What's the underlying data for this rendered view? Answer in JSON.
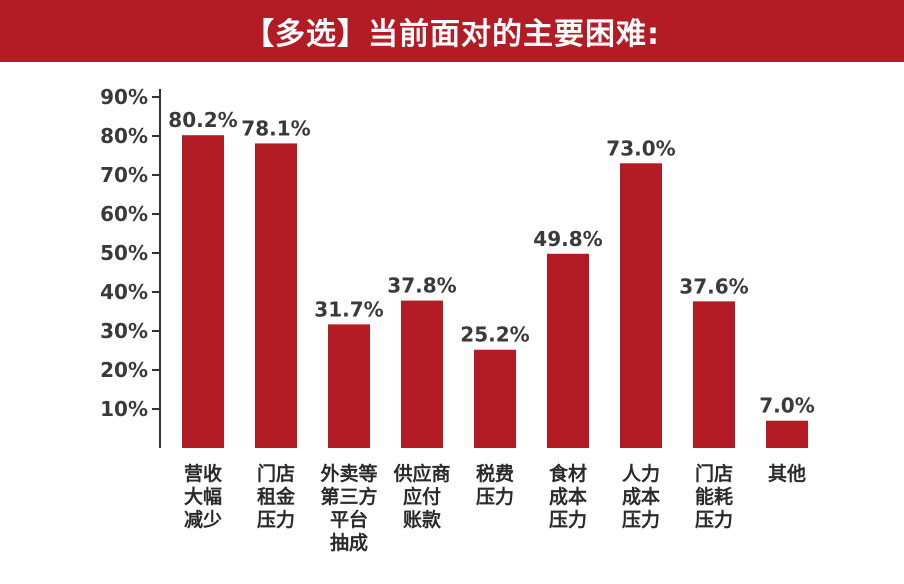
{
  "header": {
    "title": "【多选】当前面对的主要困难:"
  },
  "colors": {
    "bar": "#b31b25",
    "axis": "#333333",
    "text": "#3a3a3a",
    "title_bg": "#b31b25"
  },
  "chart_data": {
    "type": "bar",
    "title": "【多选】当前面对的主要困难:",
    "categories": [
      "营收大幅减少",
      "门店租金压力",
      "外卖等第三方平台抽成",
      "供应商应付账款",
      "税费压力",
      "食材成本压力",
      "人力成本压力",
      "门店能耗压力",
      "其他"
    ],
    "category_lines": [
      [
        "营收",
        "大幅",
        "减少"
      ],
      [
        "门店",
        "租金",
        "压力"
      ],
      [
        "外卖等",
        "第三方",
        "平台",
        "抽成"
      ],
      [
        "供应商",
        "应付",
        "账款"
      ],
      [
        "税费",
        "压力"
      ],
      [
        "食材",
        "成本",
        "压力"
      ],
      [
        "人力",
        "成本",
        "压力"
      ],
      [
        "门店",
        "能耗",
        "压力"
      ],
      [
        "其他"
      ]
    ],
    "values": [
      80.2,
      78.1,
      31.7,
      37.8,
      25.2,
      49.8,
      73.0,
      37.6,
      7.0
    ],
    "value_labels": [
      "80.2%",
      "78.1%",
      "31.7%",
      "37.8%",
      "25.2%",
      "49.8%",
      "73.0%",
      "37.6%",
      "7.0%"
    ],
    "y_ticks": [
      10,
      20,
      30,
      40,
      50,
      60,
      70,
      80,
      90
    ],
    "y_tick_labels": [
      "10%",
      "20%",
      "30%",
      "40%",
      "50%",
      "60%",
      "70%",
      "80%",
      "90%"
    ],
    "ylim": [
      0,
      90
    ],
    "xlabel": "",
    "ylabel": "",
    "grid": false,
    "legend": "none"
  }
}
